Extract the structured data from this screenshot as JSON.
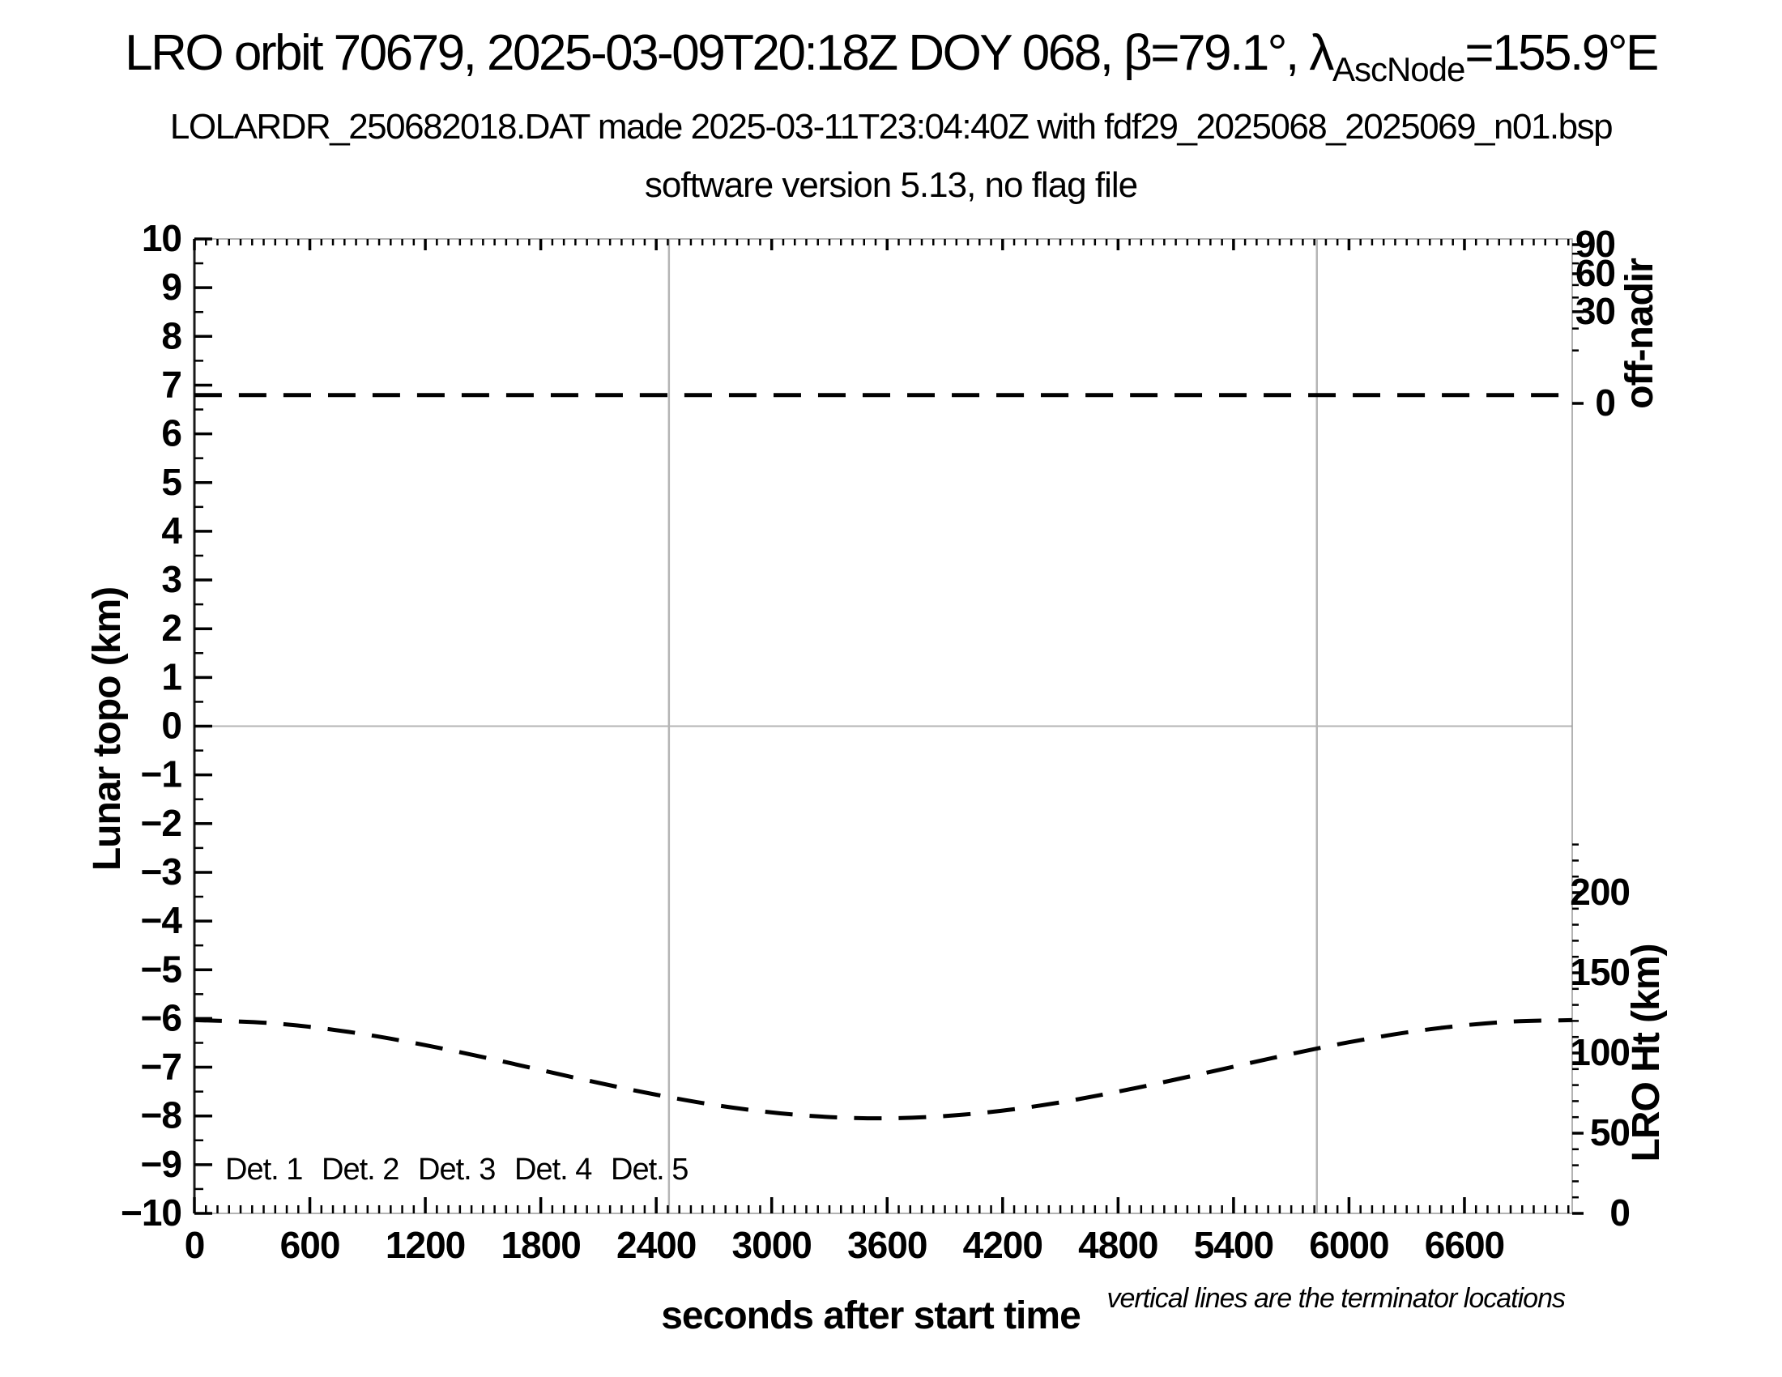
{
  "header": {
    "title_prefix": "LRO orbit 70679, 2025-03-09T20:18Z DOY 068, β=79.1°, λ",
    "title_lambda_subscript": "AscNode",
    "title_suffix": "=155.9°E",
    "subtitle1": "LOLARDR_250682018.DAT made 2025-03-11T23:04:40Z with fdf29_2025068_2025069_n01.bsp",
    "subtitle2": "software version 5.13, no flag file"
  },
  "chart_data": {
    "type": "line",
    "x_axis": {
      "label": "seconds after start time",
      "min": 0,
      "max": 7160,
      "major_ticks": [
        0,
        600,
        1200,
        1800,
        2400,
        3000,
        3600,
        4200,
        4800,
        5400,
        6000,
        6600
      ],
      "minor_step": 60
    },
    "y_left": {
      "label": "Lunar topo (km)",
      "min": -10,
      "max": 10,
      "major_step": 1,
      "minor_step": 0.5,
      "major_ticks": [
        10,
        9,
        8,
        7,
        6,
        5,
        4,
        3,
        2,
        1,
        0,
        -1,
        -2,
        -3,
        -4,
        -5,
        -6,
        -7,
        -8,
        -9,
        -10
      ]
    },
    "y_right_off_nadir": {
      "label": "off-nadir",
      "scale": "sqrt-degrees",
      "major_ticks": [
        90,
        60,
        30,
        0
      ],
      "minor_ticks": [
        10,
        20,
        40,
        50,
        70,
        80
      ]
    },
    "y_right_lro_ht": {
      "label": "LRO Ht (km)",
      "major_ticks": [
        200,
        150,
        100,
        50,
        0
      ],
      "minor_step": 10,
      "minor_max": 230
    },
    "zero_topo_gridline": 0,
    "terminator_lines_seconds": [
      2466,
      5833
    ],
    "series": [
      {
        "name": "off-nadir angle",
        "axis": "off_nadir",
        "style": "dashed",
        "color": "#000000",
        "points": [
          [
            0,
            0.25
          ],
          [
            7160,
            0.25
          ]
        ]
      },
      {
        "name": "LRO height",
        "axis": "lro_ht",
        "style": "dashed",
        "color": "#000000",
        "points": [
          [
            0,
            120.5
          ],
          [
            400,
            118.6
          ],
          [
            800,
            113.2
          ],
          [
            1200,
            104.9
          ],
          [
            1600,
            94.8
          ],
          [
            2000,
            84.0
          ],
          [
            2400,
            74.0
          ],
          [
            2800,
            65.9
          ],
          [
            3200,
            60.8
          ],
          [
            3600,
            59.3
          ],
          [
            4000,
            61.6
          ],
          [
            4400,
            67.3
          ],
          [
            4800,
            75.9
          ],
          [
            5200,
            86.1
          ],
          [
            5600,
            96.8
          ],
          [
            6000,
            106.7
          ],
          [
            6400,
            114.5
          ],
          [
            6800,
            119.3
          ],
          [
            7160,
            120.5
          ]
        ]
      }
    ],
    "legend": [
      {
        "label": "Det. 1",
        "color": "#000000"
      },
      {
        "label": "Det. 2",
        "color": "#0000ff"
      },
      {
        "label": "Det. 3",
        "color": "#00dd00"
      },
      {
        "label": "Det. 4",
        "color": "#ffa500"
      },
      {
        "label": "Det. 5",
        "color": "#ff0000"
      }
    ],
    "note": "vertical lines are the terminator locations",
    "colors": {
      "curve": "#000000",
      "gridline_gray": "#b5b5b5",
      "axis_frame": "#9a9a9a"
    }
  }
}
